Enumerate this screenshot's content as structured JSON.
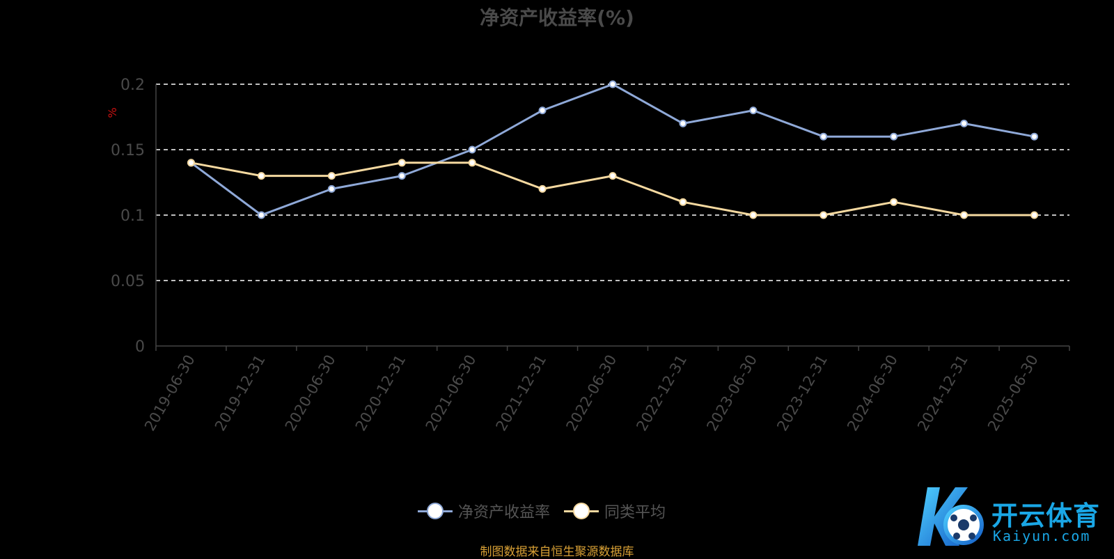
{
  "chart_data": {
    "type": "line",
    "title": "净资产收益率(%)",
    "ylabel": "%",
    "xlabel": "",
    "categories": [
      "2019-06-30",
      "2019-12-31",
      "2020-06-30",
      "2020-12-31",
      "2021-06-30",
      "2021-12-31",
      "2022-06-30",
      "2022-12-31",
      "2023-06-30",
      "2023-12-31",
      "2024-06-30",
      "2024-12-31",
      "2025-06-30"
    ],
    "series": [
      {
        "name": "净资产收益率",
        "color": "#8fa9d8",
        "values": [
          0.14,
          0.1,
          0.12,
          0.13,
          0.15,
          0.18,
          0.2,
          0.17,
          0.18,
          0.16,
          0.16,
          0.17,
          0.16
        ]
      },
      {
        "name": "同类平均",
        "color": "#f5d9a0",
        "values": [
          0.14,
          0.13,
          0.13,
          0.14,
          0.14,
          0.12,
          0.13,
          0.11,
          0.1,
          0.1,
          0.11,
          0.1,
          0.1
        ]
      }
    ],
    "ylim": [
      0,
      0.2
    ],
    "yticks": [
      "0",
      "0.05",
      "0.1",
      "0.15",
      "0.2"
    ],
    "grid": true,
    "legend_position": "bottom"
  },
  "source_note": "制图数据来自恒生聚源数据库",
  "watermark": {
    "brand": "开云体育",
    "sub": "Kaiyun.com"
  }
}
